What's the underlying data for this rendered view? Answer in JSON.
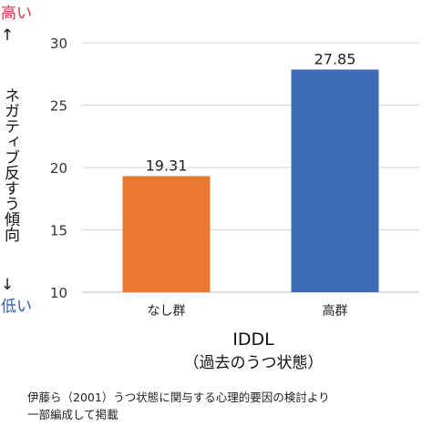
{
  "chart_data": {
    "type": "bar",
    "categories": [
      "なし群",
      "高群"
    ],
    "values": [
      19.31,
      27.85
    ],
    "value_labels": [
      "19.31",
      "27.85"
    ],
    "bar_colors": [
      "#E8792F",
      "#3F6CB8"
    ],
    "ylim": [
      10,
      30
    ],
    "yticks": [
      "10",
      "15",
      "20",
      "25",
      "30"
    ],
    "grid": true,
    "xlabel": "IDDL",
    "xlabel_sub": "（過去のうつ状態）",
    "ylabel": "ネガティブ反すう傾向",
    "ylabel_high": "高い",
    "ylabel_low": "低い",
    "arrow_up": "↑",
    "arrow_down": "↓"
  },
  "source": {
    "line1": "伊藤ら（2001）うつ状態に関与する心理的要因の検討より",
    "line2": "一部編成して掲載"
  }
}
